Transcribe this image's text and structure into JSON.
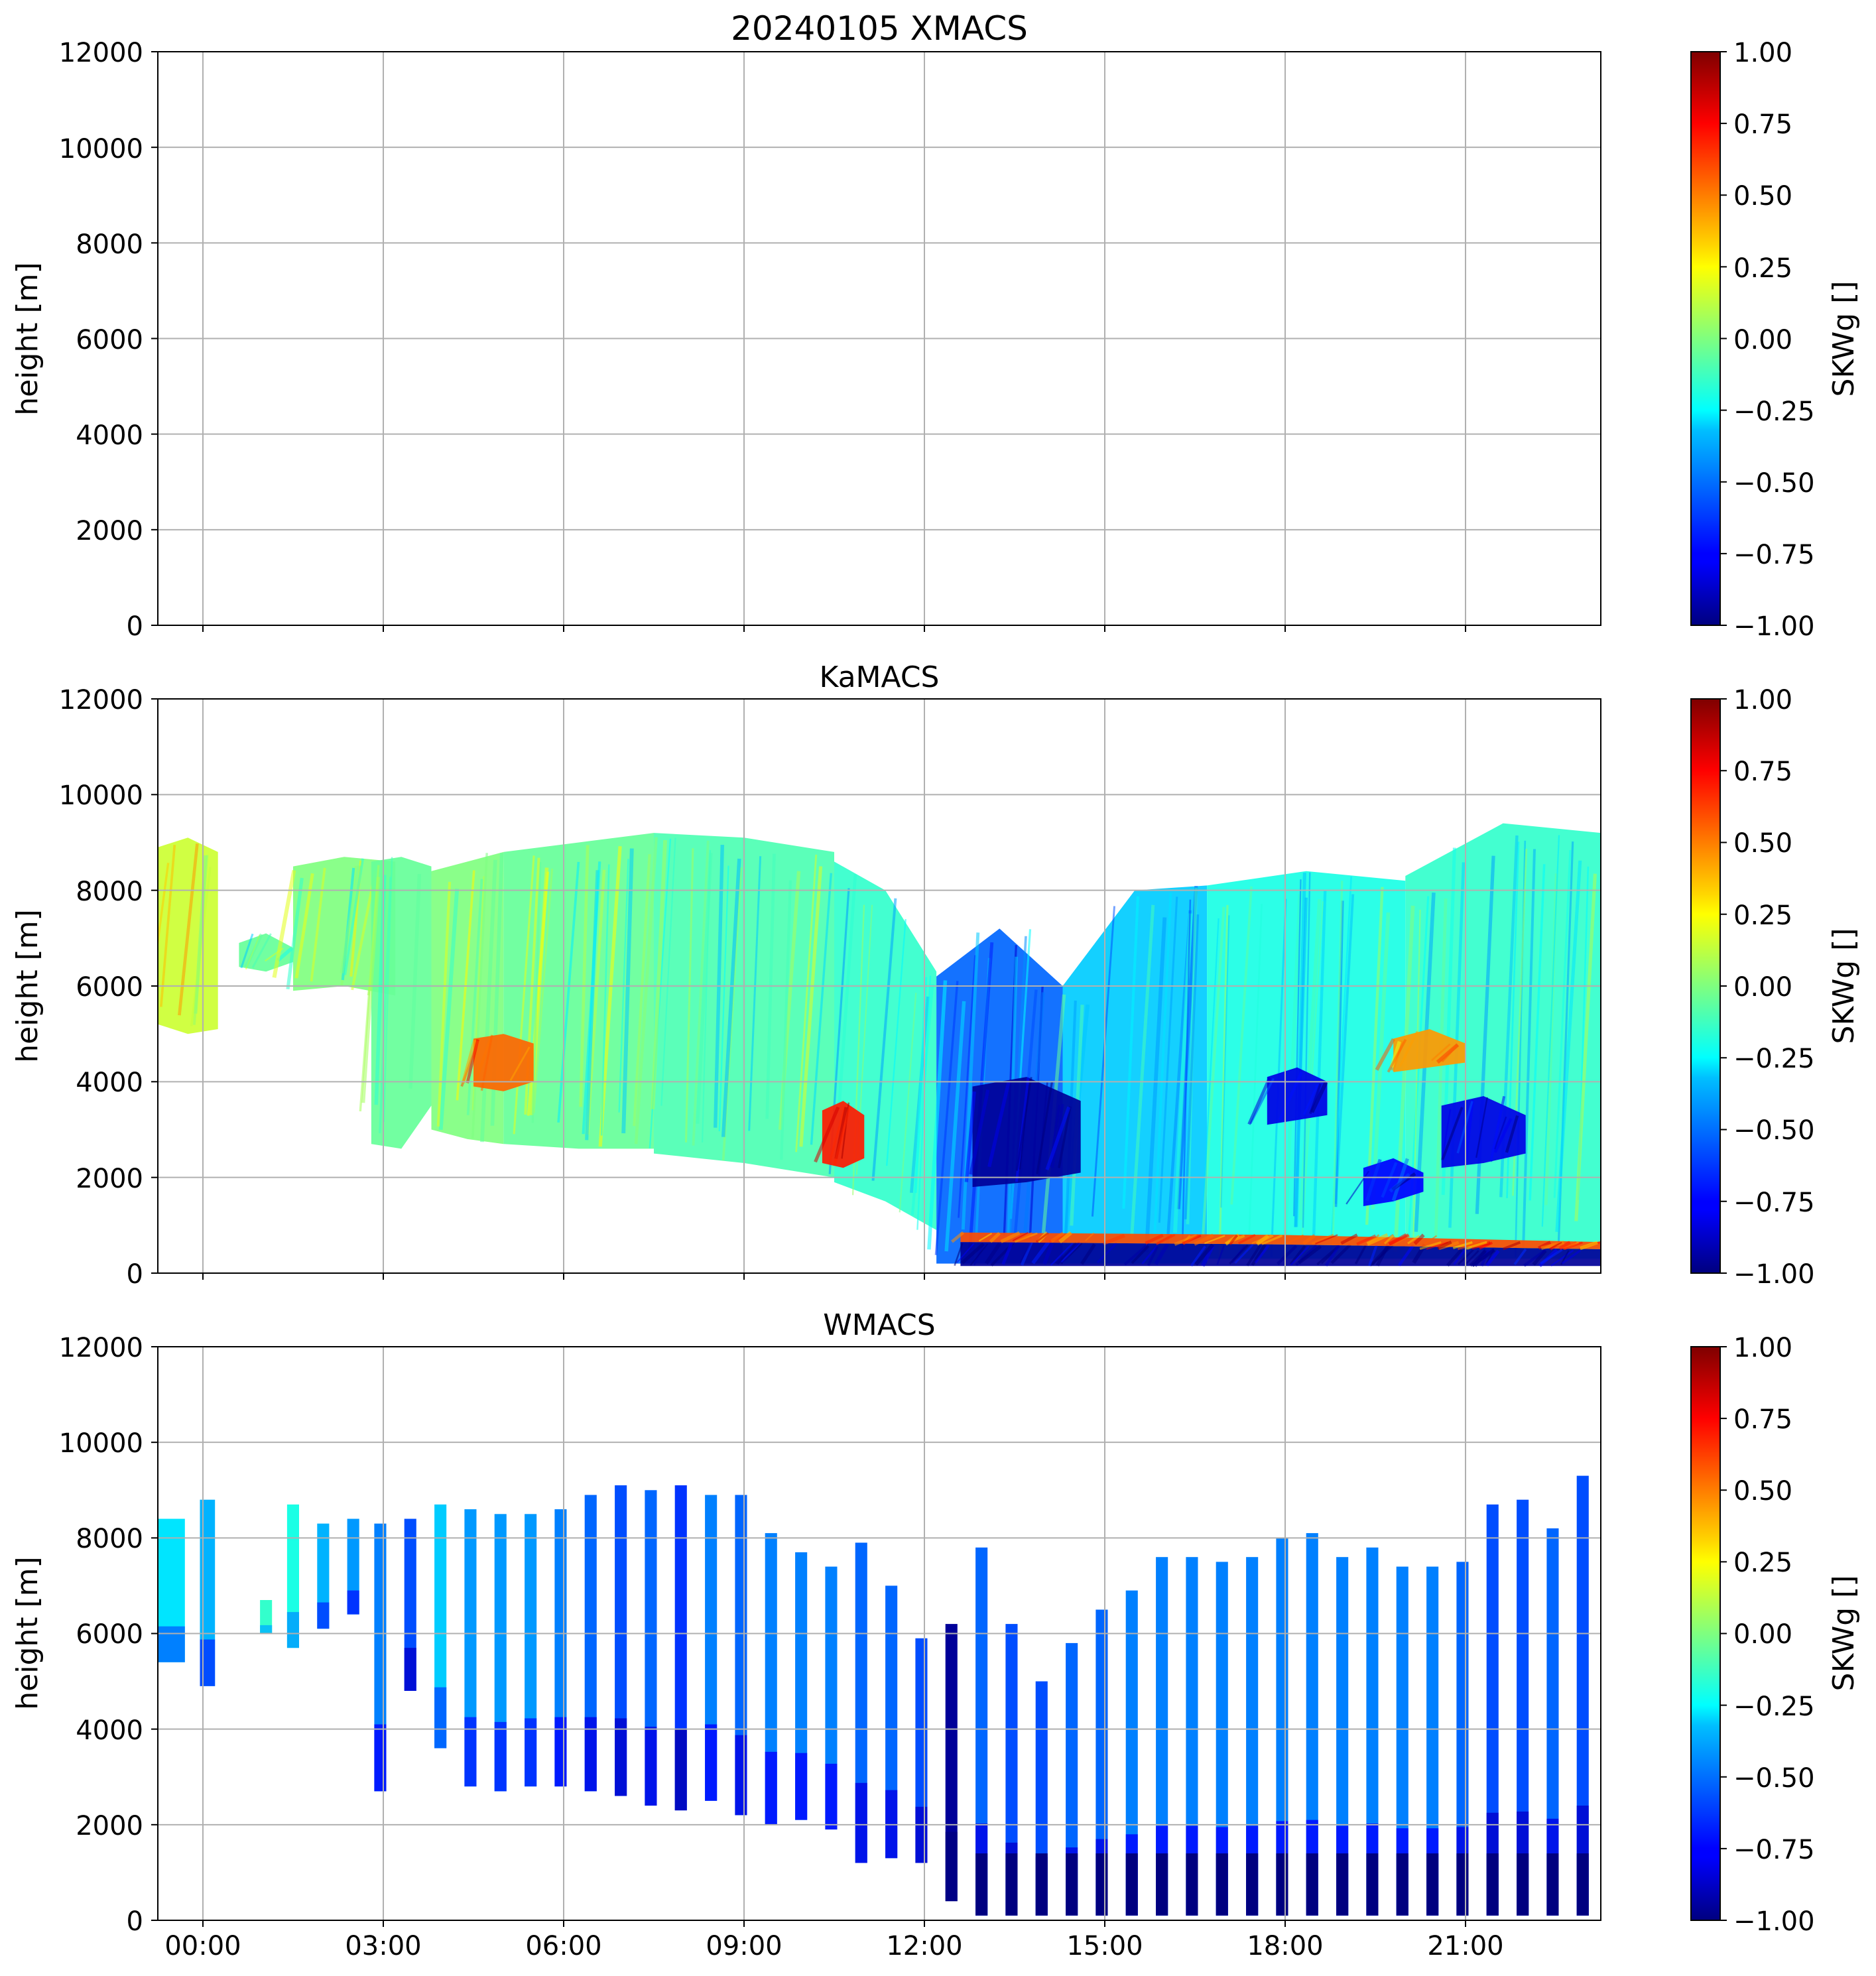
{
  "chart_data": [
    {
      "type": "heatmap",
      "title": "20240105 XMACS",
      "ylabel": "height [m]",
      "ylim": [
        0,
        12000
      ],
      "yticks": [
        "0",
        "2000",
        "4000",
        "6000",
        "8000",
        "10000",
        "12000"
      ],
      "xlim_hours": [
        -0.75,
        23.25
      ],
      "xticks": [
        "00:00",
        "03:00",
        "06:00",
        "09:00",
        "12:00",
        "15:00",
        "18:00",
        "21:00"
      ],
      "xticks_visible": false,
      "colorbar": {
        "label": "SKWg []",
        "range": [
          -1.0,
          1.0
        ],
        "ticks": [
          "−1.00",
          "−0.75",
          "−0.50",
          "−0.25",
          "0.00",
          "0.25",
          "0.50",
          "0.75",
          "1.00"
        ],
        "colormap": "jet"
      },
      "regions": []
    },
    {
      "type": "heatmap",
      "title": "KaMACS",
      "ylabel": "height [m]",
      "ylim": [
        0,
        12000
      ],
      "yticks": [
        "0",
        "2000",
        "4000",
        "6000",
        "8000",
        "10000",
        "12000"
      ],
      "xlim_hours": [
        -0.75,
        23.25
      ],
      "xticks": [
        "00:00",
        "03:00",
        "06:00",
        "09:00",
        "12:00",
        "15:00",
        "18:00",
        "21:00"
      ],
      "xticks_visible": false,
      "colorbar": {
        "label": "SKWg []",
        "range": [
          -1.0,
          1.0
        ],
        "ticks": [
          "−1.00",
          "−0.75",
          "−0.50",
          "−0.25",
          "0.00",
          "0.25",
          "0.50",
          "0.75",
          "1.00"
        ],
        "colormap": "jet"
      },
      "regions": [
        {
          "t0": -0.75,
          "t1": 0.25,
          "bottom": [
            5200,
            5000,
            5100
          ],
          "top": [
            8900,
            9100,
            8800
          ],
          "value": 0.15
        },
        {
          "t0": 0.6,
          "t1": 1.5,
          "bottom": [
            6400,
            6300,
            6500
          ],
          "top": [
            6900,
            7100,
            6800
          ],
          "value": -0.05
        },
        {
          "t0": 1.5,
          "t1": 3.2,
          "bottom": [
            5900,
            6000,
            5800
          ],
          "top": [
            8500,
            8700,
            8600
          ],
          "value": 0.0
        },
        {
          "t0": 2.8,
          "t1": 3.8,
          "bottom": [
            2700,
            2600,
            3500
          ],
          "top": [
            8600,
            8700,
            8500
          ],
          "value": -0.05
        },
        {
          "t0": 3.8,
          "t1": 5.0,
          "bottom": [
            3000,
            2800,
            2700
          ],
          "top": [
            8400,
            8600,
            8800
          ],
          "value": 0.0
        },
        {
          "t0": 5.0,
          "t1": 7.5,
          "bottom": [
            2700,
            2600,
            2600
          ],
          "top": [
            8800,
            9000,
            9200
          ],
          "value": -0.05
        },
        {
          "t0": 7.5,
          "t1": 10.5,
          "bottom": [
            2500,
            2300,
            2000
          ],
          "top": [
            9200,
            9100,
            8800
          ],
          "value": -0.1
        },
        {
          "t0": 10.5,
          "t1": 12.2,
          "bottom": [
            1900,
            1500,
            900
          ],
          "top": [
            8600,
            8000,
            6300
          ],
          "value": -0.15
        },
        {
          "t0": 12.2,
          "t1": 14.3,
          "bottom": [
            200,
            200,
            200
          ],
          "top": [
            6200,
            7200,
            6000
          ],
          "value": -0.55
        },
        {
          "t0": 14.3,
          "t1": 16.7,
          "bottom": [
            200,
            200,
            200
          ],
          "top": [
            6000,
            8000,
            8100
          ],
          "value": -0.35
        },
        {
          "t0": 16.7,
          "t1": 20.0,
          "bottom": [
            300,
            300,
            300
          ],
          "top": [
            8100,
            8400,
            8200
          ],
          "value": -0.2
        },
        {
          "t0": 20.0,
          "t1": 23.25,
          "bottom": [
            300,
            300,
            300
          ],
          "top": [
            8300,
            9400,
            9200
          ],
          "value": -0.15
        },
        {
          "t0": 12.6,
          "t1": 23.25,
          "bottom": [
            150,
            150,
            150
          ],
          "top": [
            650,
            600,
            500
          ],
          "value": -0.95
        },
        {
          "t0": 12.6,
          "t1": 23.25,
          "bottom": [
            650,
            600,
            500
          ],
          "top": [
            850,
            800,
            650
          ],
          "value": 0.6
        },
        {
          "t0": 4.5,
          "t1": 5.5,
          "bottom": [
            3900,
            3800,
            4000
          ],
          "top": [
            4900,
            5000,
            4800
          ],
          "value": 0.55
        },
        {
          "t0": 10.3,
          "t1": 11.0,
          "bottom": [
            2300,
            2200,
            2400
          ],
          "top": [
            3400,
            3600,
            3300
          ],
          "value": 0.7
        },
        {
          "t0": 12.8,
          "t1": 14.6,
          "bottom": [
            1800,
            1900,
            2100
          ],
          "top": [
            3900,
            4100,
            3600
          ],
          "value": -0.95
        },
        {
          "t0": 17.7,
          "t1": 18.7,
          "bottom": [
            3100,
            3200,
            3300
          ],
          "top": [
            4100,
            4300,
            4000
          ],
          "value": -0.8
        },
        {
          "t0": 19.8,
          "t1": 21.0,
          "bottom": [
            4200,
            4300,
            4400
          ],
          "top": [
            4900,
            5100,
            4800
          ],
          "value": 0.45
        },
        {
          "t0": 20.6,
          "t1": 22.0,
          "bottom": [
            2200,
            2300,
            2500
          ],
          "top": [
            3500,
            3700,
            3300
          ],
          "value": -0.8
        },
        {
          "t0": 19.3,
          "t1": 20.3,
          "bottom": [
            1400,
            1500,
            1700
          ],
          "top": [
            2200,
            2400,
            2100
          ],
          "value": -0.75
        }
      ]
    },
    {
      "type": "heatmap",
      "title": "WMACS",
      "ylabel": "height [m]",
      "ylim": [
        0,
        12000
      ],
      "yticks": [
        "0",
        "2000",
        "4000",
        "6000",
        "8000",
        "10000",
        "12000"
      ],
      "xlim_hours": [
        -0.75,
        23.25
      ],
      "xticks": [
        "00:00",
        "03:00",
        "06:00",
        "09:00",
        "12:00",
        "15:00",
        "18:00",
        "21:00"
      ],
      "xticks_visible": true,
      "colorbar": {
        "label": "SKWg []",
        "range": [
          -1.0,
          1.0
        ],
        "ticks": [
          "−1.00",
          "−0.75",
          "−0.50",
          "−0.25",
          "0.00",
          "0.25",
          "0.50",
          "0.75",
          "1.00"
        ],
        "colormap": "jet"
      },
      "regions": [],
      "strips": [
        {
          "t0": -0.75,
          "t1": -0.3,
          "bottom": 5400,
          "top": 8400,
          "value": -0.3
        },
        {
          "t0": -0.05,
          "t1": 0.2,
          "bottom": 4900,
          "top": 8800,
          "value": -0.4
        },
        {
          "t0": 0.95,
          "t1": 1.15,
          "bottom": 6000,
          "top": 6700,
          "value": -0.15
        },
        {
          "t0": 1.4,
          "t1": 1.6,
          "bottom": 5700,
          "top": 8700,
          "value": -0.2
        },
        {
          "t0": 1.9,
          "t1": 2.1,
          "bottom": 6100,
          "top": 8300,
          "value": -0.4
        },
        {
          "t0": 2.4,
          "t1": 2.6,
          "bottom": 6400,
          "top": 8400,
          "value": -0.45
        },
        {
          "t0": 2.85,
          "t1": 3.05,
          "bottom": 2700,
          "top": 8300,
          "value": -0.5
        },
        {
          "t0": 3.35,
          "t1": 3.55,
          "bottom": 4800,
          "top": 8400,
          "value": -0.6
        },
        {
          "t0": 3.85,
          "t1": 4.05,
          "bottom": 3600,
          "top": 8700,
          "value": -0.35
        },
        {
          "t0": 4.35,
          "t1": 4.55,
          "bottom": 2800,
          "top": 8600,
          "value": -0.45
        },
        {
          "t0": 4.85,
          "t1": 5.05,
          "bottom": 2700,
          "top": 8500,
          "value": -0.45
        },
        {
          "t0": 5.35,
          "t1": 5.55,
          "bottom": 2800,
          "top": 8500,
          "value": -0.45
        },
        {
          "t0": 5.85,
          "t1": 6.05,
          "bottom": 2800,
          "top": 8600,
          "value": -0.5
        },
        {
          "t0": 6.35,
          "t1": 6.55,
          "bottom": 2700,
          "top": 8900,
          "value": -0.55
        },
        {
          "t0": 6.85,
          "t1": 7.05,
          "bottom": 2600,
          "top": 9100,
          "value": -0.6
        },
        {
          "t0": 7.35,
          "t1": 7.55,
          "bottom": 2400,
          "top": 9000,
          "value": -0.55
        },
        {
          "t0": 7.85,
          "t1": 8.05,
          "bottom": 2300,
          "top": 9100,
          "value": -0.65
        },
        {
          "t0": 8.35,
          "t1": 8.55,
          "bottom": 2500,
          "top": 8900,
          "value": -0.5
        },
        {
          "t0": 8.85,
          "t1": 9.05,
          "bottom": 2200,
          "top": 8900,
          "value": -0.55
        },
        {
          "t0": 9.35,
          "t1": 9.55,
          "bottom": 2000,
          "top": 8100,
          "value": -0.5
        },
        {
          "t0": 9.85,
          "t1": 10.05,
          "bottom": 2100,
          "top": 7700,
          "value": -0.5
        },
        {
          "t0": 10.35,
          "t1": 10.55,
          "bottom": 1900,
          "top": 7400,
          "value": -0.5
        },
        {
          "t0": 10.85,
          "t1": 11.05,
          "bottom": 1200,
          "top": 7900,
          "value": -0.55
        },
        {
          "t0": 11.35,
          "t1": 11.55,
          "bottom": 1300,
          "top": 7000,
          "value": -0.55
        },
        {
          "t0": 11.85,
          "t1": 12.05,
          "bottom": 1200,
          "top": 5900,
          "value": -0.6
        },
        {
          "t0": 12.35,
          "t1": 12.55,
          "bottom": 400,
          "top": 6200,
          "value": -0.95
        },
        {
          "t0": 12.85,
          "t1": 13.05,
          "bottom": 100,
          "top": 7800,
          "value": -0.55
        },
        {
          "t0": 13.35,
          "t1": 13.55,
          "bottom": 100,
          "top": 6200,
          "value": -0.6
        },
        {
          "t0": 13.85,
          "t1": 14.05,
          "bottom": 100,
          "top": 5000,
          "value": -0.6
        },
        {
          "t0": 14.35,
          "t1": 14.55,
          "bottom": 100,
          "top": 5800,
          "value": -0.55
        },
        {
          "t0": 14.85,
          "t1": 15.05,
          "bottom": 100,
          "top": 6500,
          "value": -0.55
        },
        {
          "t0": 15.35,
          "t1": 15.55,
          "bottom": 100,
          "top": 6900,
          "value": -0.5
        },
        {
          "t0": 15.85,
          "t1": 16.05,
          "bottom": 100,
          "top": 7600,
          "value": -0.5
        },
        {
          "t0": 16.35,
          "t1": 16.55,
          "bottom": 100,
          "top": 7600,
          "value": -0.5
        },
        {
          "t0": 16.85,
          "t1": 17.05,
          "bottom": 100,
          "top": 7500,
          "value": -0.5
        },
        {
          "t0": 17.35,
          "t1": 17.55,
          "bottom": 100,
          "top": 7600,
          "value": -0.5
        },
        {
          "t0": 17.85,
          "t1": 18.05,
          "bottom": 100,
          "top": 8000,
          "value": -0.5
        },
        {
          "t0": 18.35,
          "t1": 18.55,
          "bottom": 100,
          "top": 8100,
          "value": -0.5
        },
        {
          "t0": 18.85,
          "t1": 19.05,
          "bottom": 100,
          "top": 7600,
          "value": -0.5
        },
        {
          "t0": 19.35,
          "t1": 19.55,
          "bottom": 100,
          "top": 7800,
          "value": -0.5
        },
        {
          "t0": 19.85,
          "t1": 20.05,
          "bottom": 100,
          "top": 7400,
          "value": -0.5
        },
        {
          "t0": 20.35,
          "t1": 20.55,
          "bottom": 100,
          "top": 7400,
          "value": -0.5
        },
        {
          "t0": 20.85,
          "t1": 21.05,
          "bottom": 100,
          "top": 7500,
          "value": -0.55
        },
        {
          "t0": 21.35,
          "t1": 21.55,
          "bottom": 100,
          "top": 8700,
          "value": -0.6
        },
        {
          "t0": 21.85,
          "t1": 22.05,
          "bottom": 100,
          "top": 8800,
          "value": -0.6
        },
        {
          "t0": 22.35,
          "t1": 22.55,
          "bottom": 100,
          "top": 8200,
          "value": -0.55
        },
        {
          "t0": 22.85,
          "t1": 23.05,
          "bottom": 100,
          "top": 9300,
          "value": -0.6
        }
      ],
      "strip_base": {
        "bottom": 100,
        "top": 1400,
        "value": -1.0,
        "from_t": 12.85
      }
    }
  ]
}
